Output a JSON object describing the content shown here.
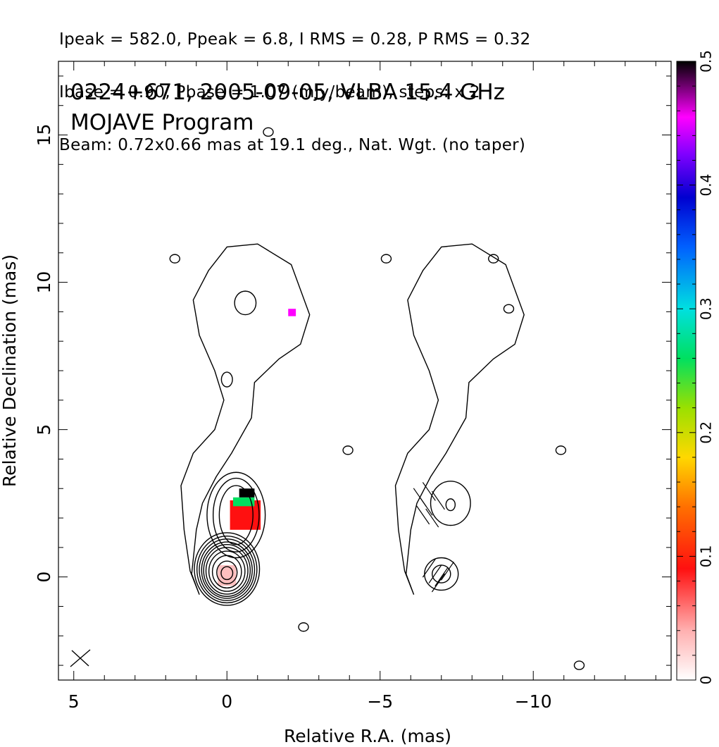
{
  "header": {
    "line1": "Ipeak = 582.0, Ppeak = 6.8, I RMS = 0.28, P RMS = 0.32",
    "line2": "Ibase = 0.90, Pbase = 1.07 (mJy/beam), steps: x 2",
    "line3": "Beam: 0.72x0.66 mas at 19.1 deg., Nat. Wgt. (no taper)"
  },
  "chart_data": {
    "type": "heatmap",
    "title": "0224+671, 2005-09-05, VLBA 15.4 GHz",
    "subtitle": "MOJAVE Program",
    "xlabel": "Relative R.A. (mas)",
    "ylabel": "Relative Declination (mas)",
    "xlim": [
      5.5,
      -14.5
    ],
    "ylim": [
      -3.5,
      17.5
    ],
    "x_ticks": [
      5,
      0,
      -5,
      -10
    ],
    "x_tick_labels": [
      "5",
      "0",
      "−5",
      "−10"
    ],
    "y_ticks": [
      0,
      5,
      10,
      15
    ],
    "y_tick_labels": [
      "0",
      "5",
      "10",
      "15"
    ],
    "colorbar": {
      "min": 0,
      "max": 0.5,
      "ticks": [
        0,
        0.1,
        0.2,
        0.3,
        0.4,
        0.5
      ],
      "tick_labels": [
        "0",
        "0.1",
        "0.2",
        "0.3",
        "0.4",
        "0.5"
      ]
    },
    "panels": [
      {
        "name": "total intensity contours with fractional polarization",
        "x_offset": 0
      },
      {
        "name": "polarized intensity contours with EVPA sticks",
        "x_offset": -7.0
      }
    ],
    "core": {
      "x": 0.0,
      "y": 0.1,
      "contour_radii": [
        0.2,
        0.35,
        0.5,
        0.62,
        0.72,
        0.8,
        0.87,
        0.95,
        1.03,
        1.12
      ]
    },
    "jet_knot": {
      "x": -0.3,
      "y": 2.4
    },
    "polarization_patches": [
      {
        "x_range": [
          -1.1,
          -0.1
        ],
        "y_range": [
          1.6,
          2.6
        ],
        "frac_pol": 0.1
      },
      {
        "x_range": [
          -0.9,
          -0.2
        ],
        "y_range": [
          2.4,
          2.7
        ],
        "frac_pol": 0.27
      },
      {
        "x_range": [
          -0.9,
          -0.4
        ],
        "y_range": [
          2.7,
          3.0
        ],
        "frac_pol": 0.5
      },
      {
        "x_range": [
          -2.25,
          -2.0
        ],
        "y_range": [
          8.85,
          9.1
        ],
        "frac_pol": 0.46
      },
      {
        "x_range": [
          -0.3,
          0.3
        ],
        "y_range": [
          -0.3,
          0.4
        ],
        "frac_pol": 0.04
      }
    ],
    "beam": {
      "major_mas": 0.72,
      "minor_mas": 0.66,
      "pa_deg": 19.1
    }
  }
}
